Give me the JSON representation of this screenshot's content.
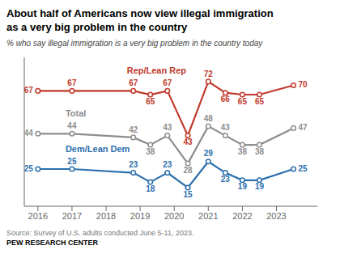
{
  "chart_data": {
    "type": "line",
    "title": "About half of Americans now view illegal immigration\nas a very big problem in the country",
    "subtitle": "% who say illegal immigration is a very big problem in the country today",
    "annotations": [
      "Source: Survey of U.S. adults conducted June 5-11, 2023.",
      "PEW RESEARCH CENTER"
    ],
    "x": [
      2016,
      2017,
      2018.8,
      2019.3,
      2019.8,
      2020.4,
      2021.0,
      2021.5,
      2022.0,
      2022.5,
      2023.5
    ],
    "series": [
      {
        "name": "Rep/Lean Rep",
        "color": "#c0392b",
        "values": [
          67,
          67,
          67,
          65,
          67,
          43,
          72,
          66,
          65,
          65,
          70
        ]
      },
      {
        "name": "Total",
        "color": "#8e8e8e",
        "values": [
          44,
          44,
          42,
          38,
          43,
          28,
          48,
          43,
          38,
          38,
          47
        ]
      },
      {
        "name": "Dem/Lean Dem",
        "color": "#2c6fad",
        "values": [
          25,
          25,
          23,
          18,
          23,
          15,
          29,
          23,
          19,
          19,
          25
        ]
      }
    ],
    "xlim": [
      2015.6,
      2024.2
    ],
    "ylim": [
      5,
      85
    ],
    "xticks": [
      2016,
      2017,
      2018,
      2019,
      2020,
      2021,
      2022,
      2023
    ],
    "grid": false,
    "data_labels": true,
    "tick_labels": "x",
    "marker": "circle"
  }
}
